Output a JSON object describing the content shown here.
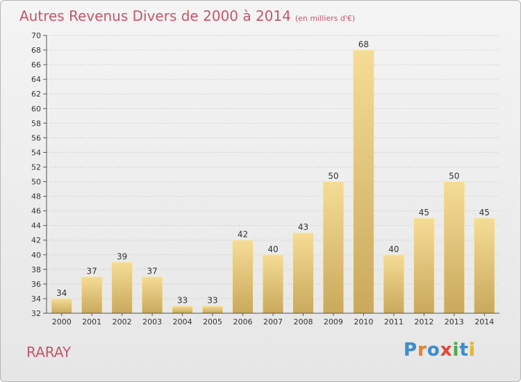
{
  "title": "Autres Revenus Divers de 2000 à 2014",
  "subtitle": "(en milliers d'€)",
  "place": "RARAY",
  "logo": "Proxiti",
  "colors": {
    "title": "#c2566a",
    "bar_light": "#f5dc96",
    "bar_dark": "#c9a95c",
    "logo_letters": [
      "#3a8fd0",
      "#e8822a",
      "#3a8fd0",
      "#e14a3a",
      "#4caf50",
      "#3a8fd0",
      "#e8b82a"
    ]
  },
  "chart_data": {
    "type": "bar",
    "title": "Autres Revenus Divers de 2000 à 2014",
    "subtitle": "(en milliers d'€)",
    "categories": [
      "2000",
      "2001",
      "2002",
      "2003",
      "2004",
      "2005",
      "2006",
      "2007",
      "2008",
      "2009",
      "2010",
      "2011",
      "2012",
      "2013",
      "2014"
    ],
    "values": [
      34,
      37,
      39,
      37,
      33,
      33,
      42,
      40,
      43,
      50,
      68,
      40,
      45,
      50,
      45
    ],
    "ylim": [
      32,
      70
    ],
    "yticks": [
      32,
      34,
      36,
      38,
      40,
      42,
      44,
      46,
      48,
      50,
      52,
      54,
      56,
      58,
      60,
      62,
      64,
      66,
      68,
      70
    ],
    "grid": true,
    "data_labels": true
  }
}
